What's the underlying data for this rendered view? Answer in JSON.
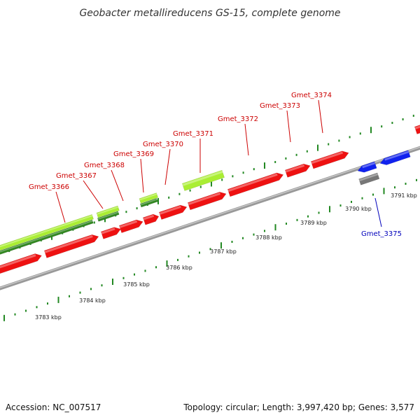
{
  "title": "Geobacter metallireducens GS-15, complete genome",
  "footer": {
    "accession": "Accession: NC_007517",
    "summary": "Topology: circular; Length: 3,997,420 bp; Genes: 3,577"
  },
  "colors": {
    "gene_forward": "#ee1111",
    "gene_reverse": "#1122ee",
    "rna_light_green": "#aaee33",
    "rna_dark_green": "#338822",
    "pseudo_gray": "#777777",
    "backbone": "#888888",
    "tick": "#228822",
    "label_red": "#cc0000",
    "label_blue": "#0000bb"
  },
  "kbp_labels": [
    "3783 kbp",
    "3784 kbp",
    "3785 kbp",
    "3786 kbp",
    "3787 kbp",
    "3788 kbp",
    "3789 kbp",
    "3790 kbp",
    "3791 kbp"
  ],
  "genes_top": [
    "Gmet_3366",
    "Gmet_3367",
    "Gmet_3368",
    "Gmet_3369",
    "Gmet_3370",
    "Gmet_3371",
    "Gmet_3372",
    "Gmet_3373",
    "Gmet_3374"
  ],
  "genes_bottom": [
    "Gmet_3375"
  ]
}
